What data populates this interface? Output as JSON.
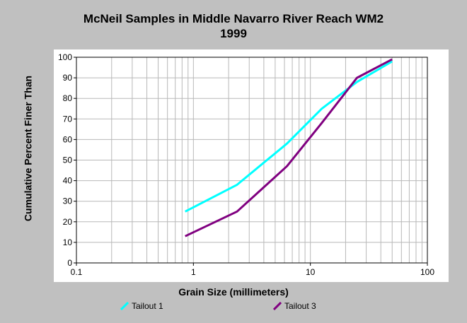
{
  "chart_data": {
    "type": "line",
    "title": "McNeil Samples in Middle Navarro River Reach WM2",
    "subtitle": "1999",
    "xlabel": "Grain Size (millimeters)",
    "ylabel": "Cumulative Percent Finer Than",
    "xscale": "log",
    "xlim": [
      0.1,
      100
    ],
    "ylim": [
      0,
      100
    ],
    "x_ticks": [
      "0.1",
      "1",
      "10",
      "100"
    ],
    "y_ticks": [
      "0",
      "10",
      "20",
      "30",
      "40",
      "50",
      "60",
      "70",
      "80",
      "90",
      "100"
    ],
    "grid": true,
    "legend_position": "bottom",
    "series": [
      {
        "name": "Tailout 1",
        "color": "#00ffff",
        "x": [
          0.85,
          2.36,
          6.3,
          12.5,
          25,
          50
        ],
        "y": [
          25,
          38,
          58,
          75,
          88,
          98
        ]
      },
      {
        "name": "Tailout 3",
        "color": "#800080",
        "x": [
          0.85,
          2.36,
          6.3,
          12.5,
          25,
          50
        ],
        "y": [
          13,
          25,
          47,
          68,
          90,
          99
        ]
      }
    ]
  }
}
